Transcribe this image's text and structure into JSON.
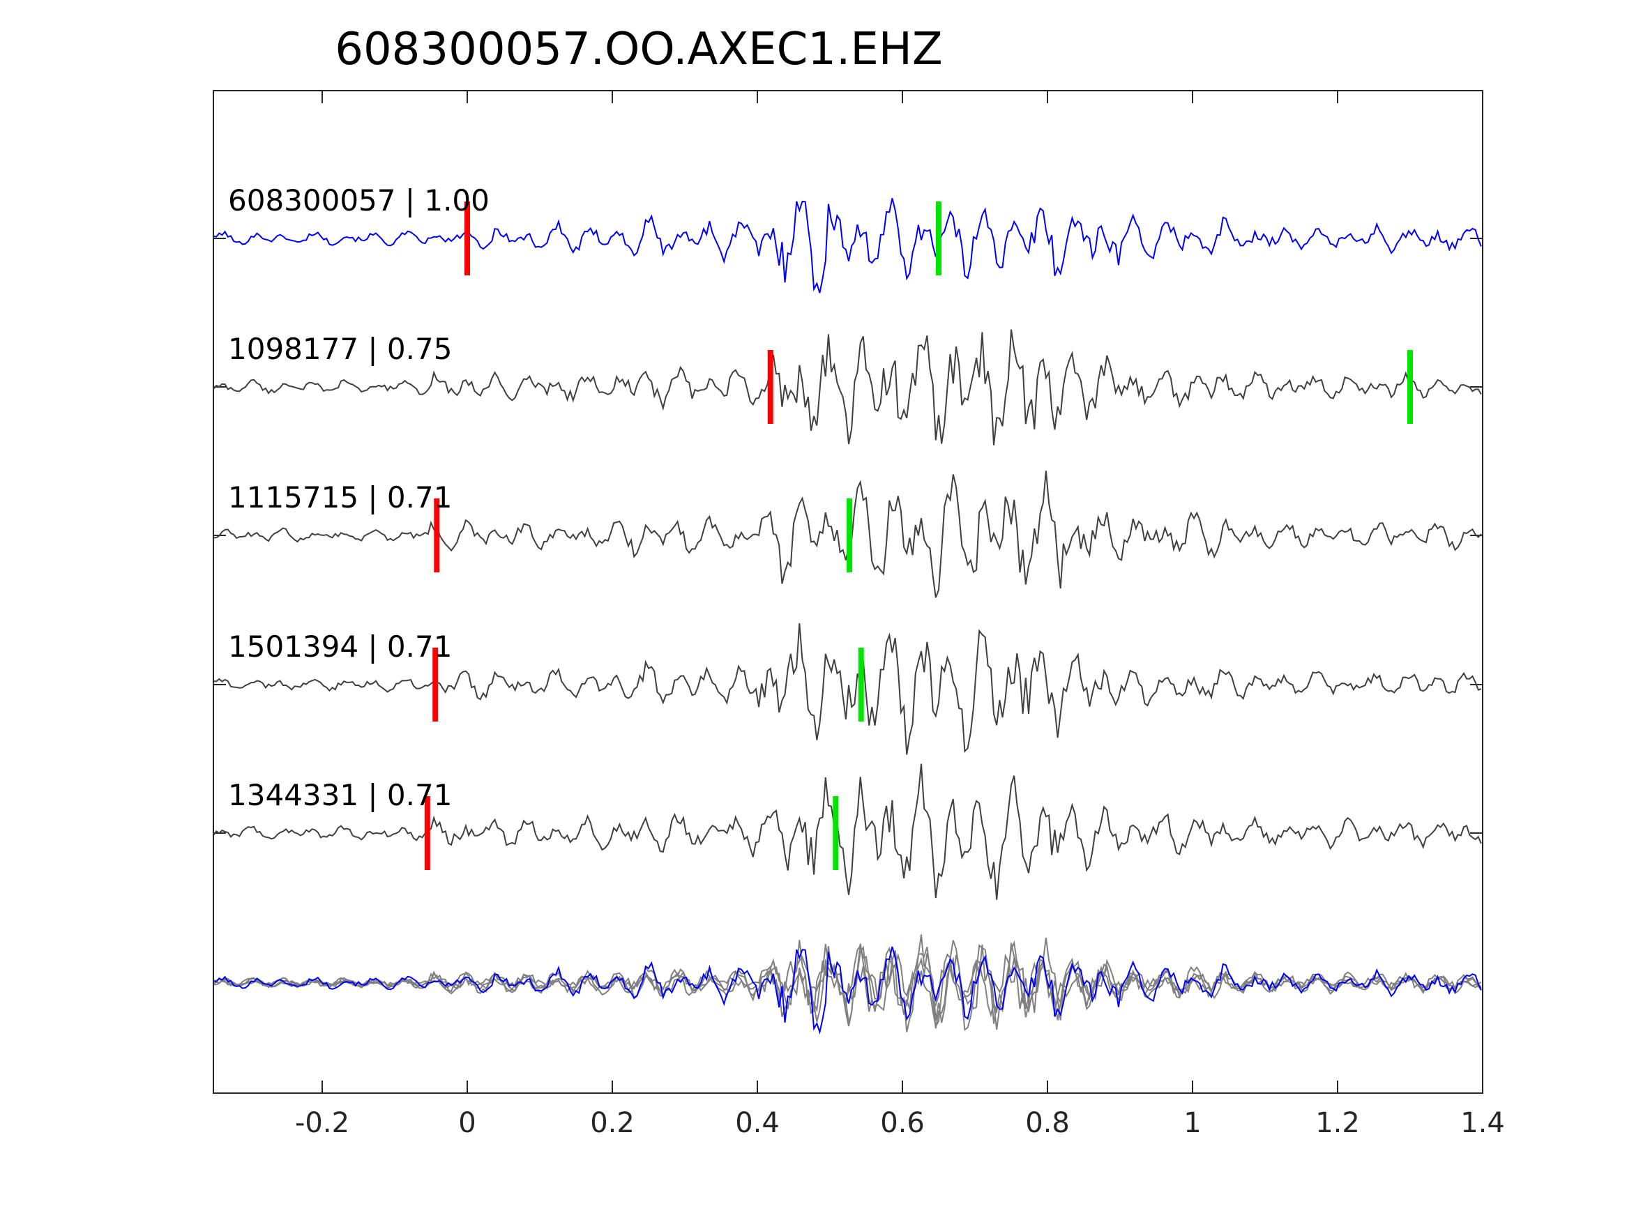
{
  "chart_data": {
    "type": "line",
    "title": "608300057.OO.AXEC1.EHZ",
    "xlabel": "",
    "ylabel": "",
    "xlim": [
      -0.35,
      1.4
    ],
    "xticks": [
      "-0.2",
      "0",
      "0.2",
      "0.4",
      "0.6",
      "0.8",
      "1",
      "1.2",
      "1.4"
    ],
    "xtick_values": [
      -0.2,
      0,
      0.2,
      0.4,
      0.6,
      0.8,
      1.0,
      1.2,
      1.4
    ],
    "grid": false,
    "legend": "none",
    "overlay_panel": true,
    "series": [
      {
        "label": "608300057 | 1.00",
        "color": "#0000ff",
        "red_pick": 0.0,
        "green_pick": 0.65
      },
      {
        "label": "1098177 | 0.75",
        "color": "#404040",
        "red_pick": 0.418,
        "green_pick": 1.3
      },
      {
        "label": "1115715 | 0.71",
        "color": "#404040",
        "red_pick": -0.042,
        "green_pick": 0.527
      },
      {
        "label": "1501394 | 0.71",
        "color": "#404040",
        "red_pick": -0.044,
        "green_pick": 0.543
      },
      {
        "label": "1344331 | 0.71",
        "color": "#404040",
        "red_pick": -0.055,
        "green_pick": 0.508
      }
    ],
    "colors": {
      "template": "#0000ff",
      "trace": "#404040",
      "overlay": "#808080",
      "p_pick": "#ff0000",
      "s_pick": "#00e600",
      "axes": "#262626"
    }
  }
}
